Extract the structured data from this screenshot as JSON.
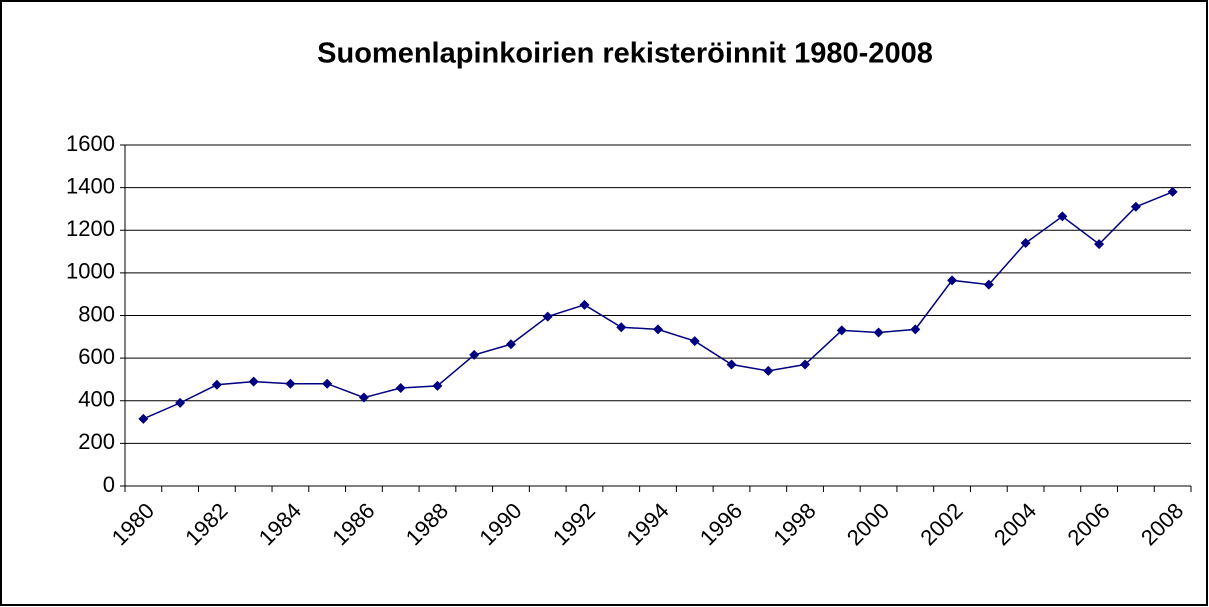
{
  "chart_data": {
    "type": "line",
    "title": "Suomenlapinkoirien rekisteröinnit 1980-2008",
    "categories": [
      "1980",
      null,
      "1982",
      null,
      "1984",
      null,
      "1986",
      null,
      "1988",
      null,
      "1990",
      null,
      "1992",
      null,
      "1994",
      null,
      "1996",
      null,
      "1998",
      null,
      "2000",
      null,
      "2002",
      null,
      "2004",
      null,
      "2006",
      null,
      "2008"
    ],
    "values": [
      315,
      390,
      475,
      490,
      480,
      480,
      415,
      460,
      470,
      615,
      665,
      795,
      850,
      745,
      735,
      680,
      570,
      540,
      570,
      730,
      720,
      735,
      965,
      945,
      1140,
      1265,
      1135,
      1310,
      1380
    ],
    "color": "#000080",
    "ylim": [
      0,
      1600
    ],
    "yticks": [
      0,
      200,
      400,
      600,
      800,
      1000,
      1200,
      1400,
      1600
    ],
    "grid": true
  }
}
